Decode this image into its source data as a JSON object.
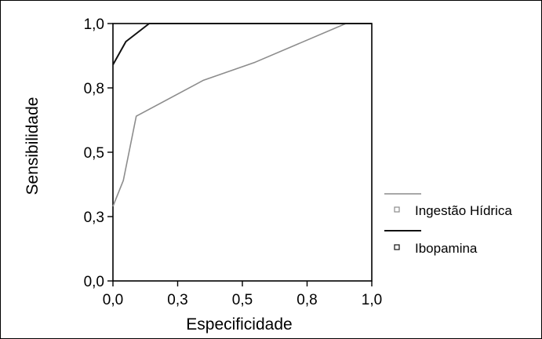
{
  "chart_data": {
    "type": "line",
    "title": "",
    "xlabel": "Especificidade",
    "ylabel": "Sensibilidade",
    "xlim": [
      0,
      1
    ],
    "ylim": [
      0,
      1
    ],
    "x_ticks": [
      0,
      0.25,
      0.5,
      0.75,
      1
    ],
    "x_tick_labels": [
      "0,0",
      "0,3",
      "0,5",
      "0,8",
      "1,0"
    ],
    "y_ticks": [
      0,
      0.25,
      0.5,
      0.75,
      1
    ],
    "y_tick_labels": [
      "0,0",
      "0,3",
      "0,5",
      "0,8",
      "1,0"
    ],
    "grid": false,
    "legend_position": "right",
    "series": [
      {
        "name": "Ingestão Hídrica",
        "color": "#8c8c8c",
        "points": [
          [
            0,
            0.29
          ],
          [
            0.04,
            0.39
          ],
          [
            0.09,
            0.64
          ],
          [
            0.35,
            0.78
          ],
          [
            0.55,
            0.85
          ],
          [
            0.9,
            1.0
          ],
          [
            1.0,
            1.0
          ]
        ]
      },
      {
        "name": "Ibopamina",
        "color": "#111111",
        "points": [
          [
            0,
            0.84
          ],
          [
            0.05,
            0.93
          ],
          [
            0.14,
            1.0
          ],
          [
            1.0,
            1.0
          ]
        ]
      }
    ]
  }
}
